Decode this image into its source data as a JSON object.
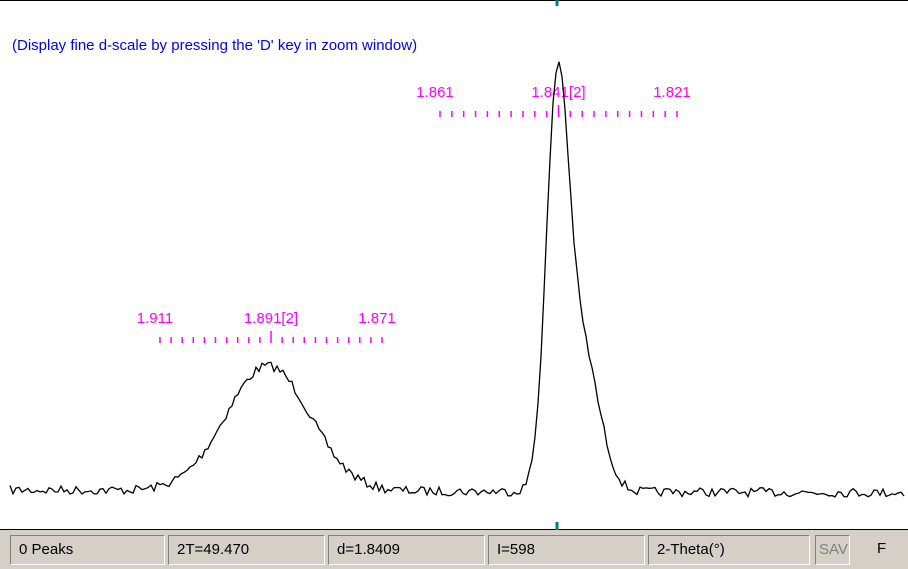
{
  "hint": "(Display fine d-scale by pressing the 'D' key in zoom window)",
  "scales": [
    {
      "labels": [
        "1.911",
        "1.891[2]",
        "1.871"
      ]
    },
    {
      "labels": [
        "1.861",
        "1.841[2]",
        "1.821"
      ]
    }
  ],
  "status": [
    "0 Peaks",
    "2T=49.470",
    "d=1.8409",
    "I=598",
    "2-Theta(°)",
    "SAV",
    "F"
  ]
}
